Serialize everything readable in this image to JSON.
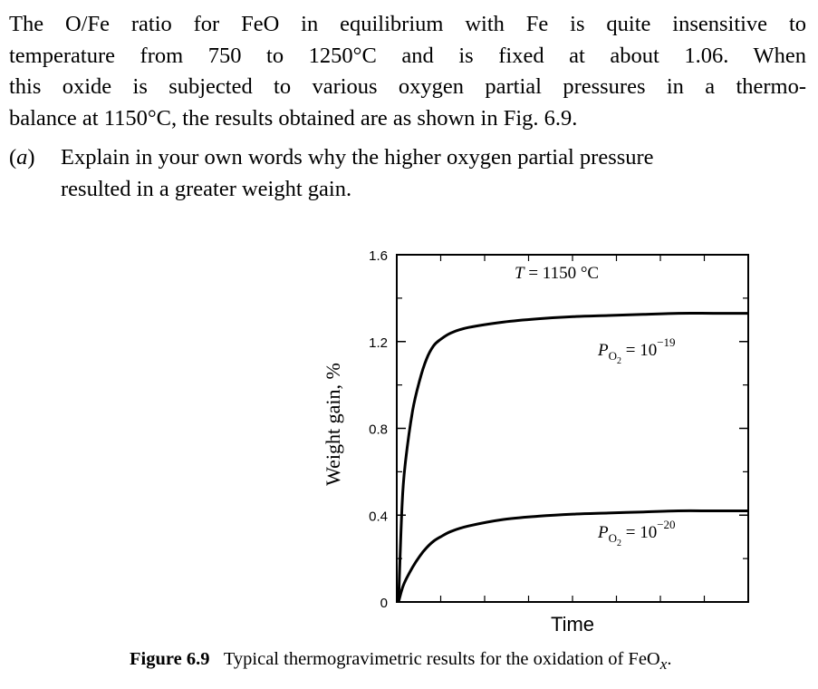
{
  "paragraph": {
    "lines": [
      "The O/Fe ratio for FeO in equilibrium with Fe is quite insensitive to",
      "temperature from 750 to 1250°C and is fixed at about 1.06. When",
      "this oxide is subjected to various oxygen partial pressures in a thermo-",
      "balance at 1150°C, the results obtained are as shown in Fig. 6.9."
    ]
  },
  "question": {
    "label_open": "(",
    "label_letter": "a",
    "label_close": ")",
    "lines": [
      "Explain in your own words why the higher oxygen partial pressure",
      "resulted in a greater weight gain."
    ]
  },
  "figure": {
    "caption_label": "Figure 6.9",
    "caption_text": "Typical thermogravimetric results for the oxidation of FeO",
    "caption_subscript": "x",
    "caption_end": "."
  },
  "chart_data": {
    "type": "line",
    "annotation": {
      "temperature_var": "T",
      "temperature_text": " = 1150 °C"
    },
    "xlabel": "Time",
    "ylabel": "Weight gain, %",
    "ylim": [
      0,
      1.6
    ],
    "y_ticks": [
      "0",
      "0.4",
      "0.8",
      "1.2",
      "1.6"
    ],
    "x_tick_labels_shown": false,
    "grid": false,
    "x": [
      0,
      0.01,
      0.02,
      0.04,
      0.06,
      0.08,
      0.1,
      0.12,
      0.15,
      0.2,
      0.3,
      0.4,
      0.5,
      0.6,
      0.7,
      0.8,
      0.9,
      1.0
    ],
    "series": [
      {
        "label_base": "P",
        "label_sub": "O",
        "label_subsub": "2",
        "label_eq": " = 10",
        "label_exp": "−19",
        "values": [
          0,
          0.45,
          0.65,
          0.88,
          1.02,
          1.12,
          1.18,
          1.21,
          1.24,
          1.265,
          1.29,
          1.305,
          1.315,
          1.32,
          1.325,
          1.33,
          1.33,
          1.33
        ]
      },
      {
        "label_base": "P",
        "label_sub": "O",
        "label_subsub": "2",
        "label_eq": " = 10",
        "label_exp": "−20",
        "values": [
          0,
          0.06,
          0.1,
          0.16,
          0.21,
          0.25,
          0.28,
          0.3,
          0.325,
          0.35,
          0.38,
          0.395,
          0.405,
          0.41,
          0.415,
          0.42,
          0.42,
          0.42
        ]
      }
    ]
  }
}
